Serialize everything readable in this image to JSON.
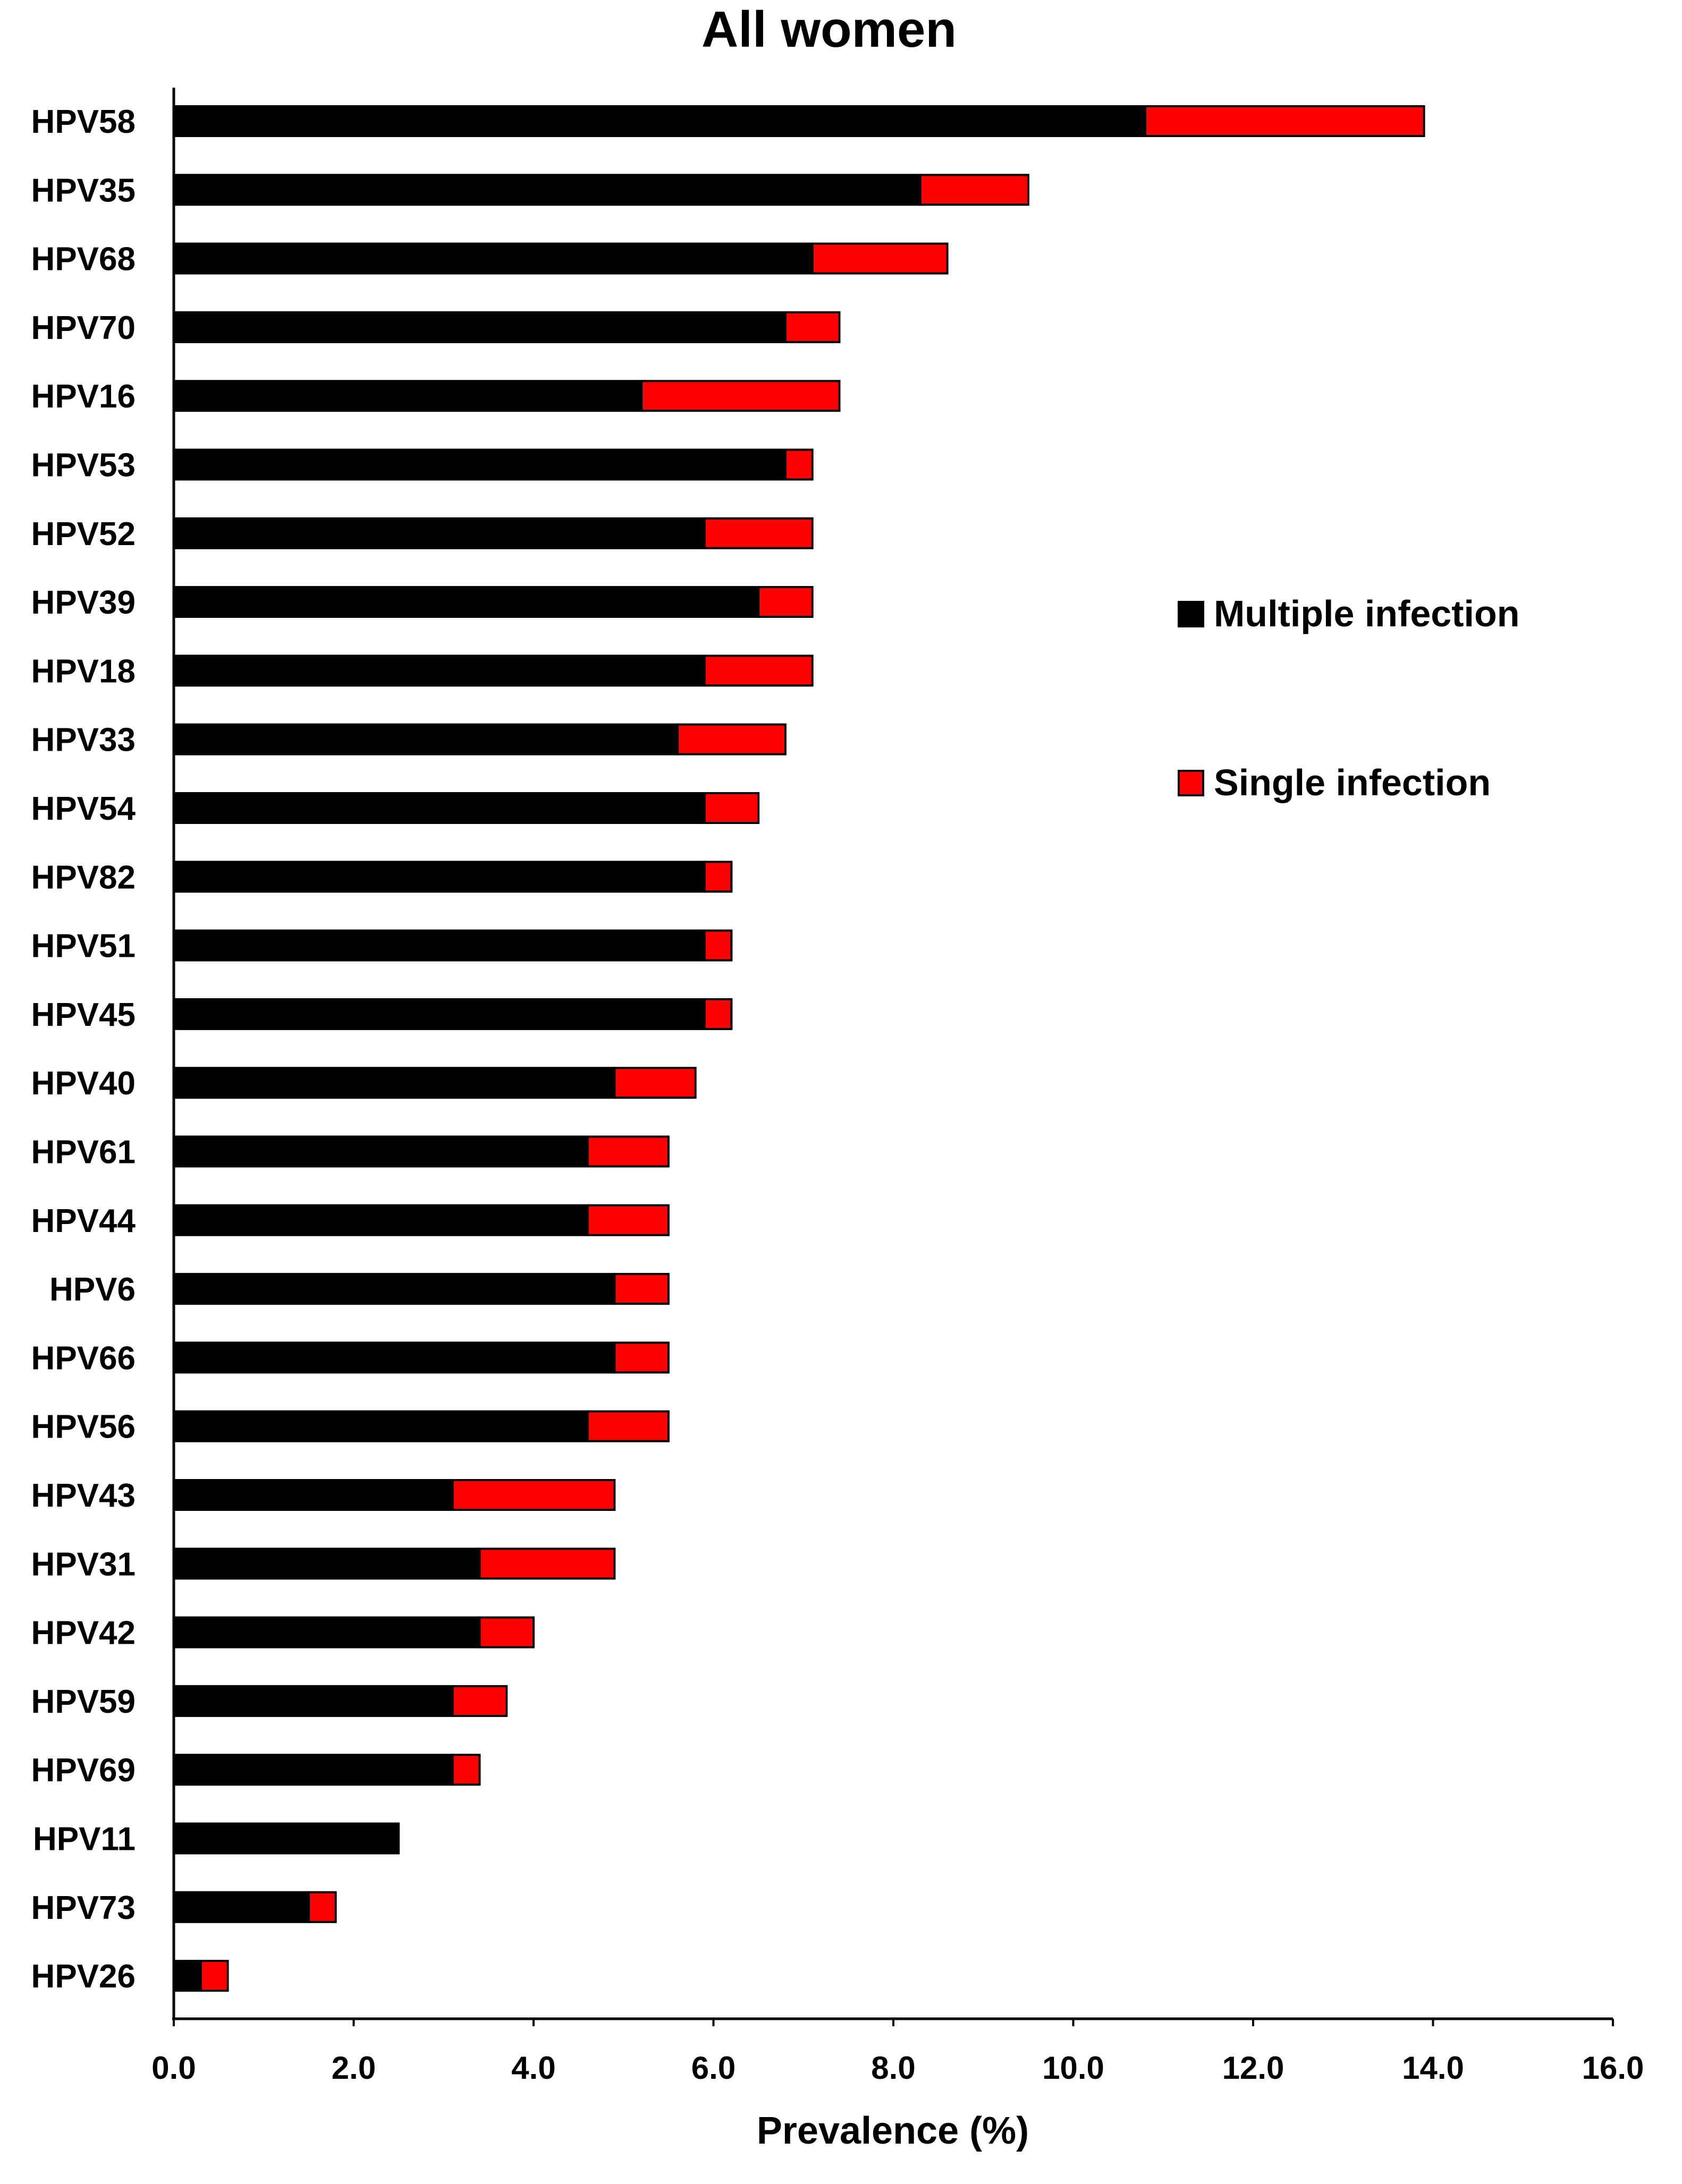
{
  "chart_data": {
    "type": "bar",
    "orientation": "horizontal",
    "stacked": true,
    "title": "All women",
    "xlabel": "Prevalence (%)",
    "ylabel": "",
    "xlim": [
      0,
      16
    ],
    "xticks": [
      "0.0",
      "2.0",
      "4.0",
      "6.0",
      "8.0",
      "10.0",
      "12.0",
      "14.0",
      "16.0"
    ],
    "grid": false,
    "legend_position": "right",
    "categories": [
      "HPV58",
      "HPV35",
      "HPV68",
      "HPV70",
      "HPV16",
      "HPV53",
      "HPV52",
      "HPV39",
      "HPV18",
      "HPV33",
      "HPV54",
      "HPV82",
      "HPV51",
      "HPV45",
      "HPV40",
      "HPV61",
      "HPV44",
      "HPV6",
      "HPV66",
      "HPV56",
      "HPV43",
      "HPV31",
      "HPV42",
      "HPV59",
      "HPV69",
      "HPV11",
      "HPV73",
      "HPV26"
    ],
    "series": [
      {
        "name": "Multiple infection",
        "color": "#000000",
        "values": [
          10.8,
          8.3,
          7.1,
          6.8,
          5.2,
          6.8,
          5.9,
          6.5,
          5.9,
          5.6,
          5.9,
          5.9,
          5.9,
          5.9,
          4.9,
          4.6,
          4.6,
          4.9,
          4.9,
          4.6,
          3.1,
          3.4,
          3.4,
          3.1,
          3.1,
          2.5,
          1.5,
          0.3
        ]
      },
      {
        "name": "Single infection",
        "color": "#ff0000",
        "values": [
          3.1,
          1.2,
          1.5,
          0.6,
          2.2,
          0.3,
          1.2,
          0.6,
          1.2,
          1.2,
          0.6,
          0.3,
          0.3,
          0.3,
          0.9,
          0.9,
          0.9,
          0.6,
          0.6,
          0.9,
          1.8,
          1.5,
          0.6,
          0.6,
          0.3,
          0.0,
          0.3,
          0.3
        ]
      }
    ]
  }
}
